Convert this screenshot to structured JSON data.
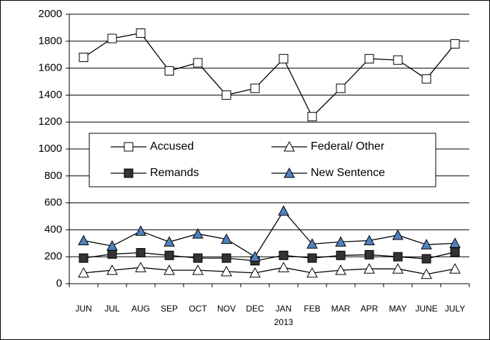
{
  "chart_data": {
    "type": "line",
    "categories": [
      "JUN",
      "JUL",
      "AUG",
      "SEP",
      "OCT",
      "NOV",
      "DEC",
      "JAN",
      "FEB",
      "MAR",
      "APR",
      "MAY",
      "JUNE",
      "JULY"
    ],
    "x_label": "2013",
    "ylim": [
      0,
      2000
    ],
    "yticks": [
      0,
      200,
      400,
      600,
      800,
      1000,
      1200,
      1400,
      1600,
      1800,
      2000
    ],
    "grid": true,
    "series": [
      {
        "name": "Accused",
        "color": "#000000",
        "marker": "square",
        "marker_fill": "#ffffff",
        "values": [
          1680,
          1820,
          1860,
          1580,
          1640,
          1400,
          1450,
          1670,
          1240,
          1450,
          1670,
          1660,
          1520,
          1780
        ]
      },
      {
        "name": "Federal/ Other",
        "color": "#000000",
        "marker": "triangle",
        "marker_fill": "#ffffff",
        "values": [
          80,
          100,
          120,
          100,
          100,
          90,
          80,
          120,
          80,
          100,
          110,
          110,
          70,
          110
        ]
      },
      {
        "name": "Remands",
        "color": "#000000",
        "marker": "square",
        "marker_fill": "#333333",
        "values": [
          190,
          220,
          230,
          210,
          190,
          190,
          170,
          210,
          190,
          210,
          215,
          200,
          185,
          235
        ]
      },
      {
        "name": "New Sentence",
        "color": "#000000",
        "marker": "triangle",
        "marker_fill": "#4f81bd",
        "values": [
          320,
          280,
          390,
          310,
          370,
          330,
          200,
          540,
          295,
          310,
          320,
          360,
          290,
          300
        ]
      }
    ]
  }
}
